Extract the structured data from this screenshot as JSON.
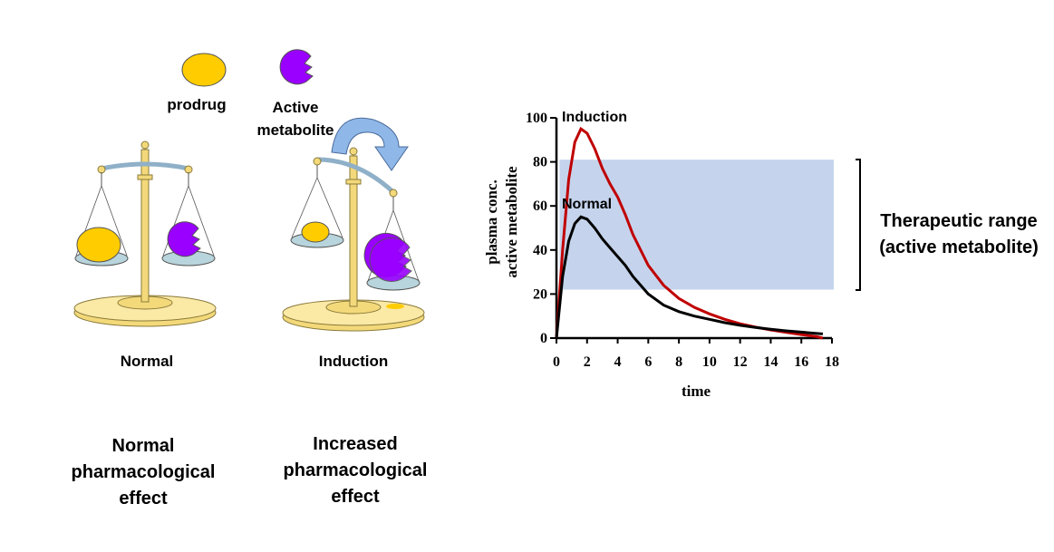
{
  "legend": {
    "prodrug": "prodrug",
    "active_line1": "Active",
    "active_line2": "metabolite"
  },
  "scales": {
    "left_label": "Normal",
    "right_label": "Induction",
    "left_effect": [
      "Normal",
      "pharmacological",
      "effect"
    ],
    "right_effect": [
      "Increased",
      "pharmacological",
      "effect"
    ]
  },
  "therapeutic": {
    "line1": "Therapeutic range",
    "line2": "(active metabolite)"
  },
  "colors": {
    "prodrug": "#ffcc00",
    "metabolite": "#9900ff",
    "band": "#c5d4ec",
    "normal_line": "#000000",
    "induction_line": "#c00000",
    "arrow": "#8fb8e8"
  },
  "chart_data": {
    "type": "line",
    "title": "",
    "xlabel": "time",
    "ylabel_line1": "plasma  conc.",
    "ylabel_line2": "active metabolite",
    "xlim": [
      0,
      18
    ],
    "ylim": [
      0,
      100
    ],
    "xticks": [
      0,
      2,
      4,
      6,
      8,
      10,
      12,
      14,
      16,
      18
    ],
    "yticks": [
      0,
      20,
      40,
      60,
      80,
      100
    ],
    "therapeutic_range": [
      22,
      81
    ],
    "series": [
      {
        "name": "Induction",
        "x": [
          0,
          0.4,
          0.8,
          1.2,
          1.6,
          2,
          2.5,
          3,
          3.5,
          4,
          4.5,
          5,
          6,
          7,
          8,
          9,
          10,
          11,
          12,
          13,
          14,
          15,
          16,
          17,
          17.4
        ],
        "y": [
          0,
          40,
          72,
          89,
          95,
          93,
          86,
          77,
          70,
          64,
          56,
          47,
          33,
          24,
          18,
          14,
          11,
          8.5,
          6.5,
          5,
          3.7,
          2.6,
          1.6,
          0.7,
          0
        ]
      },
      {
        "name": "Normal",
        "x": [
          0,
          0.4,
          0.8,
          1.2,
          1.6,
          2,
          2.5,
          3,
          3.5,
          4,
          4.5,
          5,
          6,
          7,
          8,
          9,
          10,
          11,
          12,
          13,
          14,
          15,
          16,
          17,
          17.4
        ],
        "y": [
          0,
          28,
          44,
          52,
          55,
          54,
          50,
          45,
          41,
          37,
          33,
          28,
          20,
          15,
          12,
          10,
          8.5,
          7,
          5.8,
          4.8,
          4,
          3.3,
          2.7,
          2.1,
          1.9
        ]
      }
    ]
  }
}
